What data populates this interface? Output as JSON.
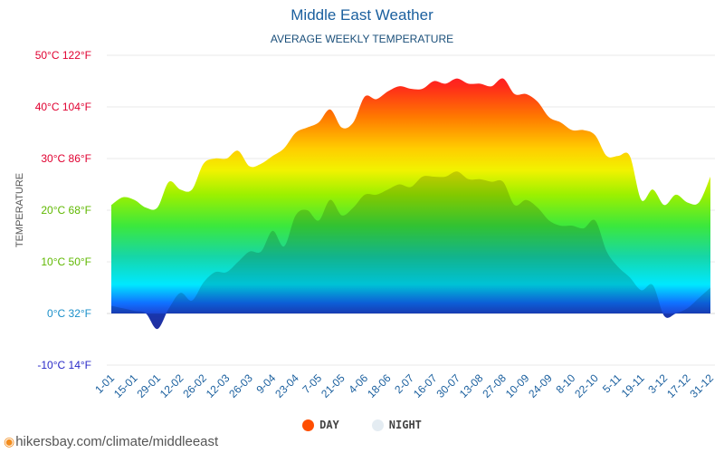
{
  "title": "Middle East Weather",
  "subtitle": "AVERAGE WEEKLY TEMPERATURE",
  "footer": {
    "url": "hikersbay.com/climate/middleeast",
    "icon": "location-pin-icon"
  },
  "legend": [
    {
      "label": "DAY",
      "color": "#ff4e00"
    },
    {
      "label": "NIGHT",
      "color": "#e4ecf2"
    }
  ],
  "chart_data": {
    "type": "area",
    "ylabel": "TEMPERATURE",
    "ylim": [
      -10,
      50
    ],
    "yticks": [
      {
        "value": 50,
        "label": "50°C 122°F",
        "color": "#e00030"
      },
      {
        "value": 40,
        "label": "40°C 104°F",
        "color": "#e00030"
      },
      {
        "value": 30,
        "label": "30°C 86°F",
        "color": "#e00030"
      },
      {
        "value": 20,
        "label": "20°C 68°F",
        "color": "#5fb800"
      },
      {
        "value": 10,
        "label": "10°C 50°F",
        "color": "#5fb800"
      },
      {
        "value": 0,
        "label": "0°C 32°F",
        "color": "#1a8fc9"
      },
      {
        "value": -10,
        "label": "-10°C 14°F",
        "color": "#2a2ac8"
      }
    ],
    "grid": true,
    "x_tick_labels": [
      "1-01",
      "15-01",
      "29-01",
      "12-02",
      "26-02",
      "12-03",
      "26-03",
      "9-04",
      "23-04",
      "7-05",
      "21-05",
      "4-06",
      "18-06",
      "2-07",
      "16-07",
      "30-07",
      "13-08",
      "27-08",
      "10-09",
      "24-09",
      "8-10",
      "22-10",
      "5-11",
      "19-11",
      "3-12",
      "17-12",
      "31-12"
    ],
    "series": [
      {
        "name": "DAY",
        "values": [
          21,
          22.5,
          22,
          20.5,
          20.5,
          25.5,
          24,
          24,
          29,
          30,
          30,
          31.5,
          28.5,
          29,
          30.5,
          32,
          35,
          36,
          37,
          39.5,
          36,
          37,
          42,
          41.5,
          43,
          44,
          43.5,
          43.5,
          45,
          44.5,
          45.5,
          44.5,
          44.5,
          44,
          45.5,
          42.5,
          42.5,
          41,
          38,
          37,
          35.5,
          35.5,
          34.5,
          30.5,
          30.5,
          30.5,
          22,
          24,
          21,
          23,
          21.5,
          21.5,
          26.5
        ]
      },
      {
        "name": "NIGHT",
        "values": [
          1.5,
          1,
          0.5,
          0,
          -3,
          1,
          4,
          2.5,
          6,
          8,
          8,
          10,
          12,
          12,
          16,
          13,
          19,
          20,
          18,
          22,
          19,
          20.5,
          23,
          23,
          24,
          25,
          24.5,
          26.5,
          26.5,
          26.5,
          27.5,
          26,
          26,
          25.5,
          25.5,
          21,
          22,
          20.5,
          18,
          17,
          17,
          16.5,
          18,
          12,
          9,
          7,
          4.5,
          5.5,
          -0.5,
          0,
          1,
          3,
          5
        ]
      }
    ]
  }
}
